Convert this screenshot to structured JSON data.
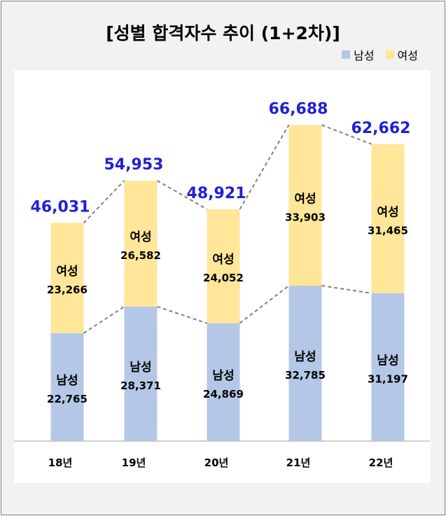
{
  "chart_data": {
    "type": "bar",
    "stacked": true,
    "title": "[성별 합격자수 추이 (1+2차)]",
    "categories": [
      "18년",
      "19년",
      "20년",
      "21년",
      "22년"
    ],
    "series": [
      {
        "name": "남성",
        "values": [
          22765,
          28371,
          24869,
          32785,
          31197
        ],
        "color": "#b4c7e7"
      },
      {
        "name": "여성",
        "values": [
          23266,
          26582,
          24052,
          33903,
          31465
        ],
        "color": "#ffe699"
      }
    ],
    "totals": [
      46031,
      54953,
      48921,
      66688,
      62662
    ],
    "value_labels": {
      "male": [
        "22,765",
        "28,371",
        "24,869",
        "32,785",
        "31,197"
      ],
      "female": [
        "23,266",
        "26,582",
        "24,052",
        "33,903",
        "31,465"
      ],
      "totals": [
        "46,031",
        "54,953",
        "48,921",
        "66,688",
        "62,662"
      ]
    },
    "ylim": [
      0,
      80000
    ],
    "legend_position": "top-right",
    "grid": false,
    "connector_lines": "dashed",
    "total_label_color": "#1f1fd6"
  }
}
